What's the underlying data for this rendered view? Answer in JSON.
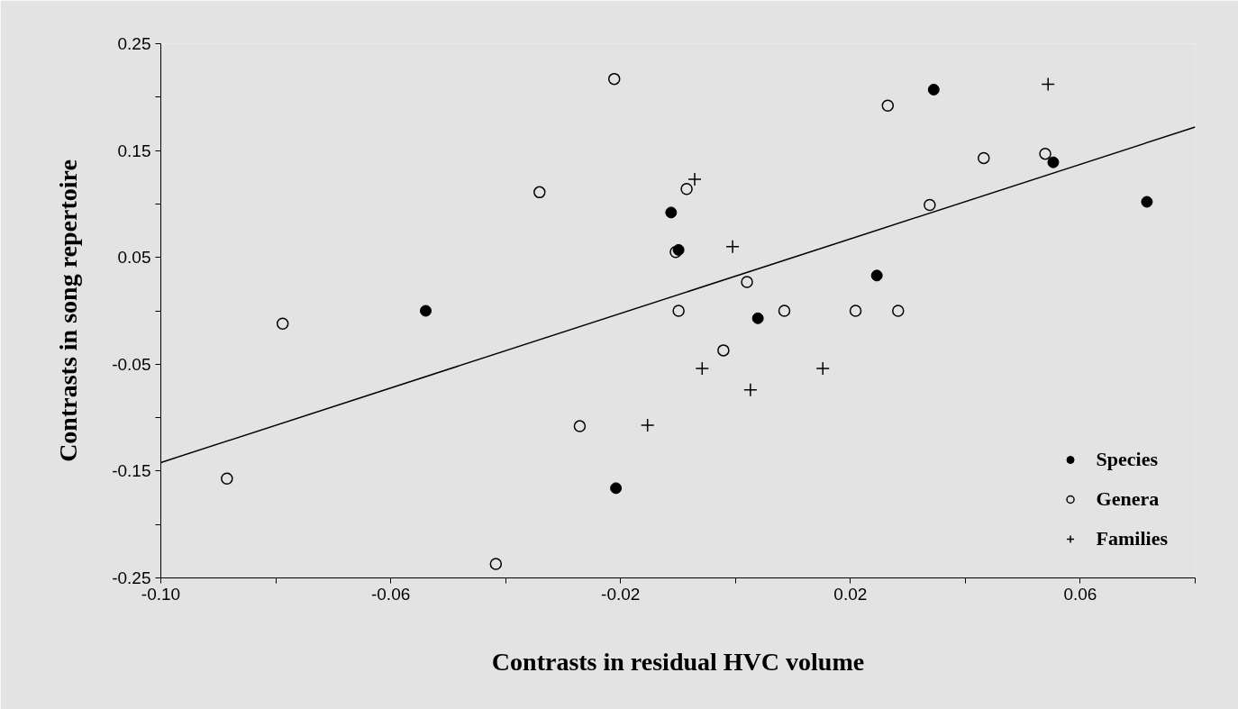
{
  "chart_data": {
    "type": "scatter",
    "xlabel": "Contrasts in residual HVC volume",
    "ylabel": "Contrasts in song repertoire",
    "xlim": [
      -0.1,
      0.08
    ],
    "ylim": [
      -0.25,
      0.25
    ],
    "xticks": [
      {
        "value": -0.1,
        "label": "-0.10"
      },
      {
        "value": -0.08,
        "label": null
      },
      -0.06,
      {
        "value": -0.04,
        "label": null
      },
      -0.02,
      {
        "value": 0,
        "label": null
      },
      0.02,
      {
        "value": 0.04,
        "label": null
      },
      0.06,
      {
        "value": 0.08,
        "label": null
      }
    ],
    "yticks": [
      -0.25,
      {
        "value": -0.2,
        "label": null
      },
      -0.15,
      {
        "value": -0.1,
        "label": null
      },
      -0.05,
      {
        "value": 0,
        "label": null
      },
      0.05,
      {
        "value": 0.1,
        "label": null
      },
      0.15,
      {
        "value": 0.2,
        "label": null
      },
      0.25
    ],
    "legend": "bottom right",
    "series": [
      {
        "name": "Species",
        "color": "#000000",
        "marker": "circle",
        "x": [
          -0.0539,
          -0.0208,
          -0.0112,
          -0.0099,
          0.0039,
          0.0246,
          0.0345,
          0.0553,
          0.0716
        ],
        "values": [
          0.0,
          -0.166,
          0.092,
          0.057,
          -0.007,
          0.033,
          0.207,
          0.139,
          0.102
        ]
      },
      {
        "name": "Genera",
        "color": "#000000",
        "marker": "circle_open",
        "x": [
          -0.0211,
          -0.0341,
          -0.0788,
          -0.0885,
          -0.0417,
          -0.0271,
          -0.0085,
          -0.0104,
          -0.0099,
          -0.0021,
          0.002,
          0.0085,
          0.0209,
          0.0283,
          0.0265,
          0.0338,
          0.0432,
          0.0539
        ],
        "values": [
          0.217,
          0.111,
          -0.012,
          -0.157,
          -0.237,
          -0.108,
          0.114,
          0.055,
          0.0,
          -0.037,
          0.027,
          0.0,
          0.0,
          0.0,
          0.192,
          0.099,
          0.143,
          0.147
        ]
      },
      {
        "name": "Families",
        "color": "#000000",
        "marker": "cross",
        "x": [
          -0.0071,
          -0.0005,
          -0.0058,
          0.0026,
          0.0152,
          -0.0153,
          0.0544
        ],
        "values": [
          0.123,
          0.06,
          -0.054,
          -0.074,
          -0.054,
          -0.107,
          0.212
        ]
      },
      {
        "type": "line",
        "color": "#000000",
        "x": [
          -0.1,
          0.08
        ],
        "values": [
          -0.142,
          0.172
        ]
      }
    ]
  }
}
